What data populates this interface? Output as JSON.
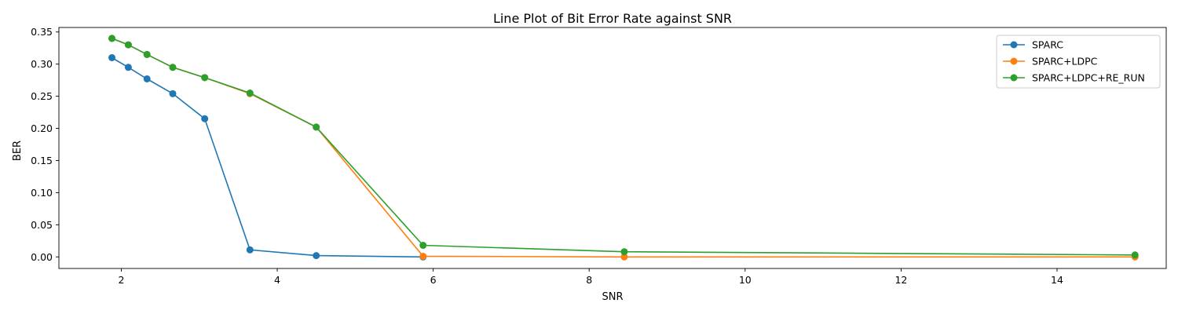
{
  "chart_data": {
    "type": "line",
    "title": "Line Plot of Bit Error Rate against SNR",
    "xlabel": "SNR",
    "ylabel": "BER",
    "xlim": [
      1.2,
      15.4
    ],
    "ylim": [
      -0.018,
      0.357
    ],
    "xticks": [
      2,
      4,
      6,
      8,
      10,
      12,
      14
    ],
    "yticks": [
      0.0,
      0.05,
      0.1,
      0.15,
      0.2,
      0.25,
      0.3,
      0.35
    ],
    "grid": false,
    "legend_position": "top-right",
    "series": [
      {
        "name": "SPARC",
        "color": "#1f77b4",
        "x": [
          1.88,
          2.09,
          2.33,
          2.66,
          3.07,
          3.65,
          4.5,
          5.87
        ],
        "y": [
          0.31,
          0.295,
          0.277,
          0.254,
          0.215,
          0.011,
          0.002,
          0.0
        ]
      },
      {
        "name": "SPARC+LDPC",
        "color": "#ff7f0e",
        "x": [
          1.88,
          2.09,
          2.33,
          2.66,
          3.07,
          3.65,
          4.5,
          5.87,
          8.45,
          15.0
        ],
        "y": [
          0.34,
          0.33,
          0.315,
          0.295,
          0.279,
          0.254,
          0.202,
          0.001,
          0.0,
          0.0
        ]
      },
      {
        "name": "SPARC+LDPC+RE_RUN",
        "color": "#2ca02c",
        "x": [
          1.88,
          2.09,
          2.33,
          2.66,
          3.07,
          3.65,
          4.5,
          5.87,
          8.45,
          15.0
        ],
        "y": [
          0.34,
          0.33,
          0.315,
          0.295,
          0.279,
          0.255,
          0.202,
          0.018,
          0.008,
          0.003
        ]
      }
    ]
  }
}
